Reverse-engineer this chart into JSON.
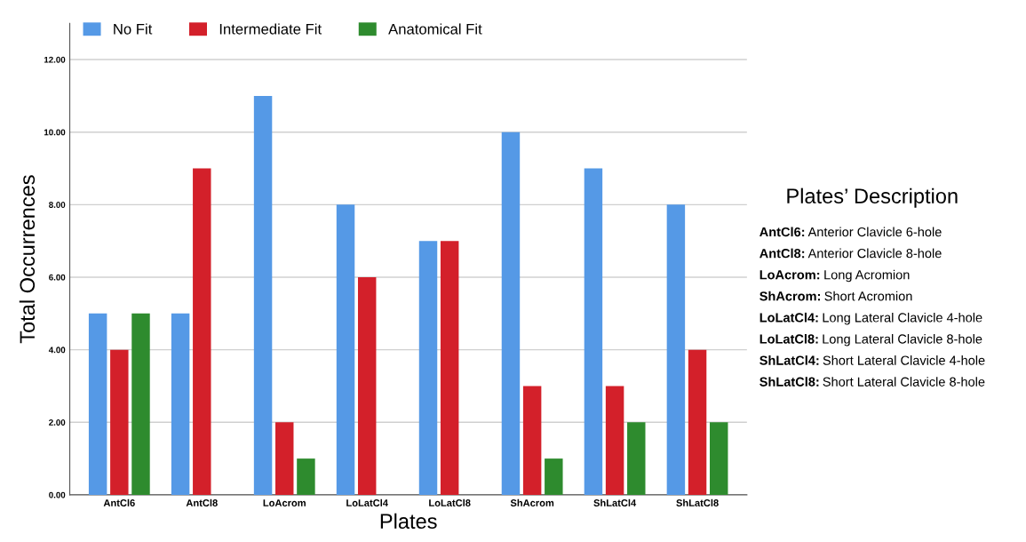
{
  "chart_data": {
    "type": "bar",
    "xlabel": "Plates",
    "ylabel": "Total Occurrences",
    "categories": [
      "AntCl6",
      "AntCl8",
      "LoAcrom",
      "LoLatCl4",
      "LoLatCl8",
      "ShAcrom",
      "ShLatCl4",
      "ShLatCl8"
    ],
    "series": [
      {
        "name": "No Fit",
        "color": "#5599e6",
        "values": [
          5,
          5,
          11,
          8,
          7,
          10,
          9,
          8
        ]
      },
      {
        "name": "Intermediate Fit",
        "color": "#d3202a",
        "values": [
          4,
          9,
          2,
          6,
          7,
          3,
          3,
          4
        ]
      },
      {
        "name": "Anatomical Fit",
        "color": "#2e8b2e",
        "values": [
          5,
          null,
          1,
          null,
          null,
          1,
          2,
          2
        ]
      }
    ],
    "ylim": [
      0,
      13
    ],
    "yticks": [
      {
        "value": 0,
        "label": "0.00"
      },
      {
        "value": 2,
        "label": "2.00"
      },
      {
        "value": 4,
        "label": "4.00"
      },
      {
        "value": 6,
        "label": "6.00"
      },
      {
        "value": 8,
        "label": "8.00"
      },
      {
        "value": 10,
        "label": "10.00"
      },
      {
        "value": 12,
        "label": "12.00"
      }
    ],
    "grid": "y",
    "legend": "top left",
    "annotations": [
      "Plates’ Description",
      "AntCl6: Anterior Clavicle 6-hole",
      "AntCl8: Anterior Clavicle 8-hole",
      "LoAcrom: Long Acromion",
      "ShAcrom: Short Acromion",
      "LoLatCl4: Long Lateral Clavicle 4-hole",
      "LoLatCl8: Long Lateral Clavicle 8-hole",
      "ShLatCl4: Short Lateral Clavicle 4-hole",
      "ShLatCl8: Short Lateral Clavicle 8-hole"
    ]
  }
}
